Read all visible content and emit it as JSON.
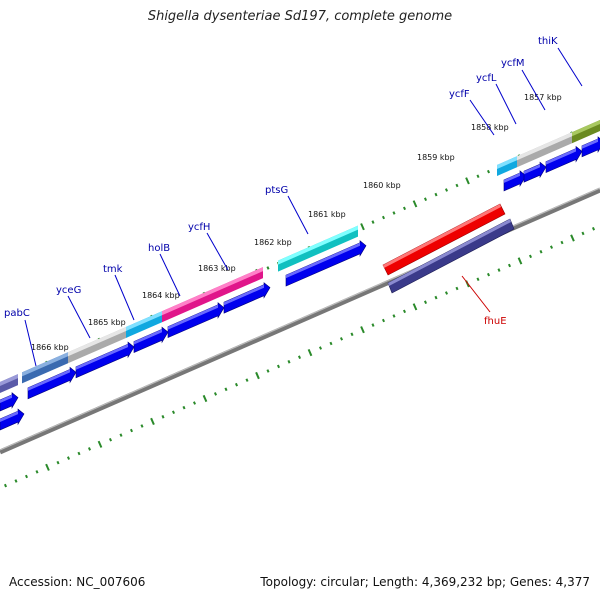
{
  "title": "Shigella dysenteriae Sd197, complete genome",
  "footer": {
    "accession": "Accession: NC_007606",
    "topology": "Topology: circular; Length: 4,369,232 bp; Genes: 4,377"
  },
  "colors": {
    "ruler_ticks": "#2a8a2a",
    "backbone": "#8a8a8a",
    "cds_arrow": "#0000ee",
    "label_forward": "#0000aa",
    "label_reverse": "#cc0000"
  },
  "kbp_labels": [
    "1866 kbp",
    "1865 kbp",
    "1864 kbp",
    "1863 kbp",
    "1862 kbp",
    "1861 kbp",
    "1860 kbp",
    "1859 kbp",
    "1858 kbp",
    "1857 kbp"
  ],
  "gene_labels": [
    {
      "text": "pabC",
      "color": "#0000aa"
    },
    {
      "text": "yceG",
      "color": "#0000aa"
    },
    {
      "text": "tmk",
      "color": "#0000aa"
    },
    {
      "text": "holB",
      "color": "#0000aa"
    },
    {
      "text": "ycfH",
      "color": "#0000aa"
    },
    {
      "text": "ptsG",
      "color": "#0000aa"
    },
    {
      "text": "ycfF",
      "color": "#0000aa"
    },
    {
      "text": "ycfL",
      "color": "#0000aa"
    },
    {
      "text": "ycfM",
      "color": "#0000aa"
    },
    {
      "text": "thiK",
      "color": "#0000aa"
    },
    {
      "text": "fhuE",
      "color": "#cc0000"
    }
  ]
}
